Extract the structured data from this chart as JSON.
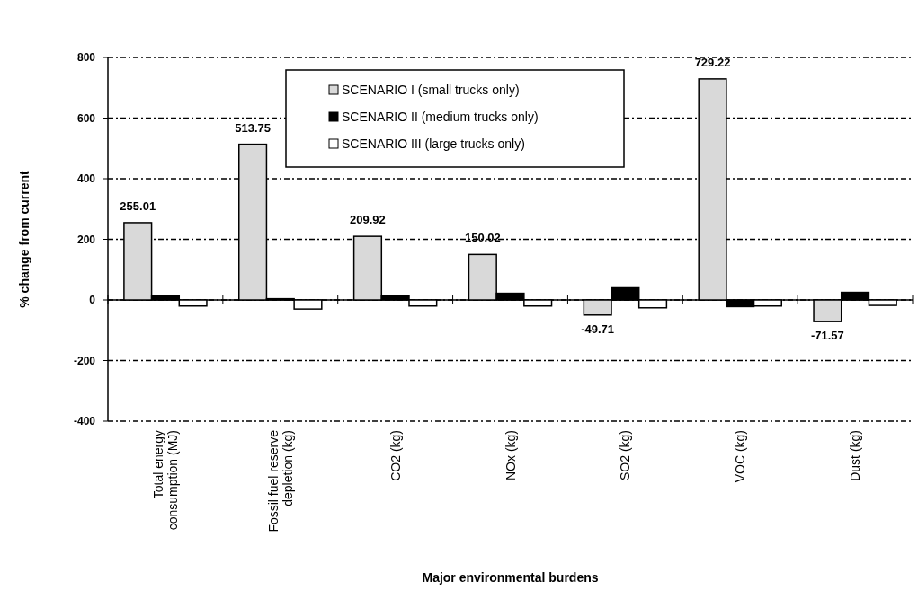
{
  "chart_data": {
    "type": "bar",
    "xlabel": "Major environmental burdens",
    "ylabel": "% change from current",
    "categories": [
      "Total energy consumption (MJ)",
      "Fossil fuel reserve depletion (kg)",
      "CO2 (kg)",
      "NOx (kg)",
      "SO2 (kg)",
      "VOC (kg)",
      "Dust (kg)"
    ],
    "series": [
      {
        "name": "SCENARIO I (small trucks only)",
        "color": "#d9d9d9",
        "values": [
          255.01,
          513.75,
          209.92,
          150.02,
          -49.71,
          729.22,
          -71.57
        ],
        "value_labels": [
          "255.01",
          "513.75",
          "209.92",
          "150.02",
          "-49.71",
          "729.22",
          "-71.57"
        ]
      },
      {
        "name": "SCENARIO II (medium trucks only)",
        "color": "#000000",
        "values": [
          13,
          4,
          13,
          22,
          40,
          -22,
          25
        ]
      },
      {
        "name": "SCENARIO III (large trucks only)",
        "color": "#ffffff",
        "values": [
          -20,
          -30,
          -20,
          -20,
          -26,
          -20,
          -18
        ]
      }
    ],
    "ylim": [
      -400,
      800
    ],
    "yticks": [
      -400,
      -200,
      0,
      200,
      400,
      600,
      800
    ],
    "grid": "y",
    "legend": "top"
  }
}
